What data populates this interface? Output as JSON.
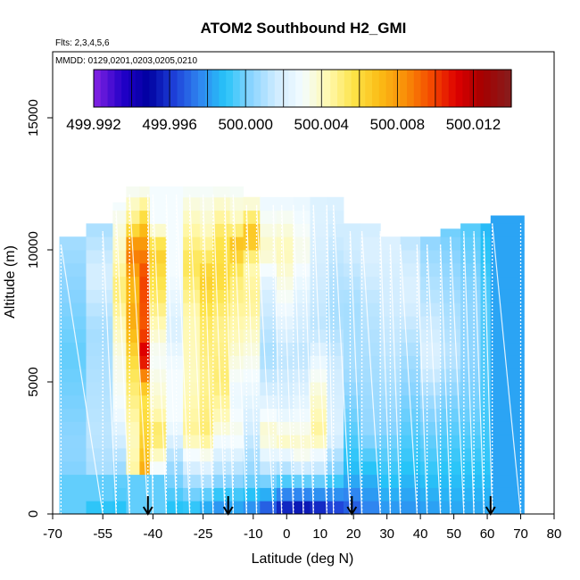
{
  "chart_data": {
    "type": "heatmap",
    "title": "ATOM2 Southbound H2_GMI",
    "subtitle_flights": "Flts: 2,3,4,5,6",
    "subtitle_dates": "MMDD: 0129,0201,0203,0205,0210",
    "xlabel": "Latitude (deg N)",
    "ylabel": "Altitude (m)",
    "xlim": [
      -70,
      80
    ],
    "ylim": [
      0,
      17500
    ],
    "x_ticks": [
      -70,
      -55,
      -40,
      -25,
      -10,
      0,
      10,
      20,
      30,
      40,
      50,
      60,
      70,
      80
    ],
    "x_tick_labels": [
      "-70",
      "-55",
      "-40",
      "-25",
      "-10",
      "0",
      "10",
      "20",
      "30",
      "40",
      "50",
      "60",
      "70",
      "80"
    ],
    "y_ticks": [
      0,
      5000,
      10000,
      15000
    ],
    "y_tick_labels": [
      "0",
      "5000",
      "10000",
      "15000"
    ],
    "colorbar": {
      "min": 499.992,
      "max": 500.014,
      "tick_values": [
        499.992,
        499.996,
        500.0,
        500.004,
        500.008,
        500.012
      ],
      "tick_labels": [
        "499.992",
        "499.996",
        "500.000",
        "500.004",
        "500.008",
        "500.012"
      ],
      "colors": [
        "#7a1fe0",
        "#2200c8",
        "#0000a0",
        "#1e3fd8",
        "#2f86f0",
        "#27c4f8",
        "#8ad4ff",
        "#d0ecff",
        "#f4fcff",
        "#fff9b0",
        "#fde347",
        "#fbbc16",
        "#f98f08",
        "#f44a00",
        "#de0000",
        "#a50000",
        "#8a1a1a"
      ]
    },
    "profile_columns": [
      {
        "lat_range": [
          -68,
          -60
        ],
        "alt_max": 10500,
        "profile": [
          [
            0,
            0.35
          ],
          [
            2500,
            0.38
          ],
          [
            6000,
            0.35
          ],
          [
            9000,
            0.38
          ],
          [
            10500,
            0.4
          ]
        ]
      },
      {
        "lat_range": [
          -60,
          -52
        ],
        "alt_max": 11000,
        "profile": [
          [
            0,
            0.3
          ],
          [
            1500,
            0.4
          ],
          [
            3000,
            0.42
          ],
          [
            7000,
            0.4
          ],
          [
            9000,
            0.45
          ],
          [
            11000,
            0.4
          ]
        ]
      },
      {
        "lat_range": [
          -52,
          -48
        ],
        "alt_max": 11800,
        "profile": [
          [
            0,
            0.3
          ],
          [
            1500,
            0.38
          ],
          [
            4000,
            0.5
          ],
          [
            6000,
            0.52
          ],
          [
            8500,
            0.6
          ],
          [
            10000,
            0.55
          ],
          [
            11800,
            0.5
          ]
        ]
      },
      {
        "lat_range": [
          -48,
          -44
        ],
        "alt_max": 12400,
        "profile": [
          [
            0,
            0.62
          ],
          [
            1000,
            0.58
          ],
          [
            3000,
            0.55
          ],
          [
            5500,
            0.62
          ],
          [
            7500,
            0.72
          ],
          [
            8500,
            0.68
          ],
          [
            10000,
            0.78
          ],
          [
            11000,
            0.6
          ],
          [
            12400,
            0.5
          ]
        ]
      },
      {
        "lat_range": [
          -44,
          -41
        ],
        "alt_max": 12400,
        "profile": [
          [
            0,
            0.7
          ],
          [
            1200,
            0.74
          ],
          [
            2500,
            0.66
          ],
          [
            4500,
            0.62
          ],
          [
            6000,
            0.9
          ],
          [
            7000,
            0.8
          ],
          [
            9000,
            0.82
          ],
          [
            10500,
            0.72
          ],
          [
            12400,
            0.5
          ]
        ]
      },
      {
        "lat_range": [
          -41,
          -36
        ],
        "alt_max": 12400,
        "profile": [
          [
            0,
            0.36
          ],
          [
            1200,
            0.45
          ],
          [
            3000,
            0.62
          ],
          [
            4000,
            0.55
          ],
          [
            6000,
            0.5
          ],
          [
            8000,
            0.6
          ],
          [
            10000,
            0.66
          ],
          [
            11000,
            0.5
          ],
          [
            12400,
            0.5
          ]
        ]
      },
      {
        "lat_range": [
          -36,
          -31
        ],
        "alt_max": 12400,
        "profile": [
          [
            0,
            0.3
          ],
          [
            2000,
            0.4
          ],
          [
            3500,
            0.5
          ],
          [
            5500,
            0.5
          ],
          [
            7000,
            0.45
          ],
          [
            9000,
            0.5
          ],
          [
            12400,
            0.5
          ]
        ]
      },
      {
        "lat_range": [
          -31,
          -26
        ],
        "alt_max": 12400,
        "profile": [
          [
            0,
            0.3
          ],
          [
            1500,
            0.42
          ],
          [
            3000,
            0.58
          ],
          [
            5000,
            0.55
          ],
          [
            7500,
            0.56
          ],
          [
            9500,
            0.62
          ],
          [
            12400,
            0.5
          ]
        ]
      },
      {
        "lat_range": [
          -26,
          -22
        ],
        "alt_max": 12400,
        "profile": [
          [
            0,
            0.26
          ],
          [
            1200,
            0.4
          ],
          [
            3000,
            0.6
          ],
          [
            5000,
            0.58
          ],
          [
            7000,
            0.6
          ],
          [
            9000,
            0.66
          ],
          [
            10500,
            0.56
          ],
          [
            12400,
            0.5
          ]
        ]
      },
      {
        "lat_range": [
          -22,
          -17
        ],
        "alt_max": 12400,
        "profile": [
          [
            0,
            0.24
          ],
          [
            1500,
            0.4
          ],
          [
            3500,
            0.55
          ],
          [
            5000,
            0.6
          ],
          [
            7000,
            0.58
          ],
          [
            9000,
            0.64
          ],
          [
            10500,
            0.62
          ],
          [
            12400,
            0.5
          ]
        ]
      },
      {
        "lat_range": [
          -17,
          -13
        ],
        "alt_max": 12400,
        "profile": [
          [
            0,
            0.26
          ],
          [
            1500,
            0.4
          ],
          [
            3000,
            0.52
          ],
          [
            4500,
            0.48
          ],
          [
            6500,
            0.55
          ],
          [
            9000,
            0.6
          ],
          [
            10200,
            0.68
          ],
          [
            11000,
            0.56
          ],
          [
            12400,
            0.5
          ]
        ]
      },
      {
        "lat_range": [
          -13,
          -8
        ],
        "alt_max": 12000,
        "profile": [
          [
            0,
            0.24
          ],
          [
            1500,
            0.38
          ],
          [
            3500,
            0.45
          ],
          [
            6000,
            0.52
          ],
          [
            8000,
            0.58
          ],
          [
            9500,
            0.56
          ],
          [
            10500,
            0.7
          ],
          [
            12000,
            0.5
          ]
        ]
      },
      {
        "lat_range": [
          -8,
          -3
        ],
        "alt_max": 12000,
        "profile": [
          [
            0,
            0.18
          ],
          [
            1500,
            0.4
          ],
          [
            3000,
            0.55
          ],
          [
            4500,
            0.45
          ],
          [
            6000,
            0.4
          ],
          [
            8500,
            0.45
          ],
          [
            10000,
            0.55
          ],
          [
            12000,
            0.48
          ]
        ]
      },
      {
        "lat_range": [
          -3,
          2
        ],
        "alt_max": 12000,
        "profile": [
          [
            0,
            0.12
          ],
          [
            1500,
            0.38
          ],
          [
            2800,
            0.55
          ],
          [
            4000,
            0.46
          ],
          [
            6000,
            0.42
          ],
          [
            8000,
            0.5
          ],
          [
            10000,
            0.56
          ],
          [
            12000,
            0.48
          ]
        ]
      },
      {
        "lat_range": [
          2,
          7
        ],
        "alt_max": 12000,
        "profile": [
          [
            0,
            0.1
          ],
          [
            1500,
            0.4
          ],
          [
            2500,
            0.55
          ],
          [
            4000,
            0.48
          ],
          [
            6000,
            0.42
          ],
          [
            8000,
            0.46
          ],
          [
            10000,
            0.52
          ],
          [
            12000,
            0.48
          ]
        ]
      },
      {
        "lat_range": [
          7,
          12
        ],
        "alt_max": 12000,
        "profile": [
          [
            0,
            0.12
          ],
          [
            1500,
            0.4
          ],
          [
            3000,
            0.58
          ],
          [
            5000,
            0.52
          ],
          [
            7000,
            0.42
          ],
          [
            9000,
            0.44
          ],
          [
            11000,
            0.46
          ],
          [
            12000,
            0.46
          ]
        ]
      },
      {
        "lat_range": [
          12,
          17
        ],
        "alt_max": 12000,
        "profile": [
          [
            0,
            0.16
          ],
          [
            1500,
            0.36
          ],
          [
            3000,
            0.46
          ],
          [
            5500,
            0.44
          ],
          [
            7500,
            0.4
          ],
          [
            9500,
            0.42
          ],
          [
            12000,
            0.46
          ]
        ]
      },
      {
        "lat_range": [
          17,
          22
        ],
        "alt_max": 11000,
        "profile": [
          [
            0,
            0.2
          ],
          [
            1500,
            0.3
          ],
          [
            3000,
            0.34
          ],
          [
            5500,
            0.4
          ],
          [
            8000,
            0.4
          ],
          [
            10000,
            0.44
          ],
          [
            11000,
            0.44
          ]
        ]
      },
      {
        "lat_range": [
          22,
          28
        ],
        "alt_max": 11000,
        "profile": [
          [
            0,
            0.24
          ],
          [
            1500,
            0.3
          ],
          [
            3000,
            0.38
          ],
          [
            5500,
            0.4
          ],
          [
            8000,
            0.42
          ],
          [
            10000,
            0.46
          ],
          [
            11000,
            0.44
          ]
        ]
      },
      {
        "lat_range": [
          28,
          34
        ],
        "alt_max": 10500,
        "profile": [
          [
            0,
            0.26
          ],
          [
            1500,
            0.32
          ],
          [
            3500,
            0.38
          ],
          [
            6000,
            0.42
          ],
          [
            8000,
            0.44
          ],
          [
            10500,
            0.46
          ]
        ]
      },
      {
        "lat_range": [
          34,
          40
        ],
        "alt_max": 10500,
        "profile": [
          [
            0,
            0.26
          ],
          [
            2000,
            0.32
          ],
          [
            4000,
            0.36
          ],
          [
            6000,
            0.4
          ],
          [
            8500,
            0.46
          ],
          [
            10500,
            0.42
          ]
        ]
      },
      {
        "lat_range": [
          40,
          46
        ],
        "alt_max": 10500,
        "profile": [
          [
            0,
            0.27
          ],
          [
            2000,
            0.33
          ],
          [
            4000,
            0.38
          ],
          [
            6000,
            0.46
          ],
          [
            8000,
            0.42
          ],
          [
            10500,
            0.38
          ]
        ]
      },
      {
        "lat_range": [
          46,
          52
        ],
        "alt_max": 10800,
        "profile": [
          [
            0,
            0.28
          ],
          [
            2000,
            0.32
          ],
          [
            4000,
            0.36
          ],
          [
            6000,
            0.42
          ],
          [
            8000,
            0.4
          ],
          [
            10800,
            0.36
          ]
        ]
      },
      {
        "lat_range": [
          52,
          58
        ],
        "alt_max": 11000,
        "profile": [
          [
            0,
            0.28
          ],
          [
            2000,
            0.32
          ],
          [
            4000,
            0.36
          ],
          [
            6000,
            0.38
          ],
          [
            8000,
            0.38
          ],
          [
            11000,
            0.34
          ]
        ]
      },
      {
        "lat_range": [
          58,
          61
        ],
        "alt_max": 11000,
        "profile": [
          [
            0,
            0.28
          ],
          [
            2000,
            0.32
          ],
          [
            5000,
            0.34
          ],
          [
            8000,
            0.34
          ],
          [
            11000,
            0.3
          ]
        ]
      },
      {
        "lat_range": [
          61,
          71
        ],
        "alt_max": 11300,
        "profile": [
          [
            0,
            0.28
          ],
          [
            11300,
            0.28
          ]
        ]
      }
    ],
    "near_surface_band": {
      "alt_range": [
        0,
        1500
      ],
      "lat_range": [
        -68,
        71
      ],
      "value_fraction": 0.3
    },
    "flight_track_lats": [
      -67.5,
      -55,
      -51,
      -47,
      -41.5,
      -40,
      -36,
      -33,
      -29,
      -25,
      -22,
      -18.5,
      -16,
      -12,
      -9,
      -4,
      -1.5,
      2,
      5,
      8,
      12,
      14,
      19,
      22.5,
      28,
      31,
      34,
      39,
      42,
      46,
      49,
      53,
      56,
      59,
      61.5,
      70
    ],
    "arrows_lat": [
      -41.5,
      -17.5,
      19.5,
      61
    ]
  }
}
